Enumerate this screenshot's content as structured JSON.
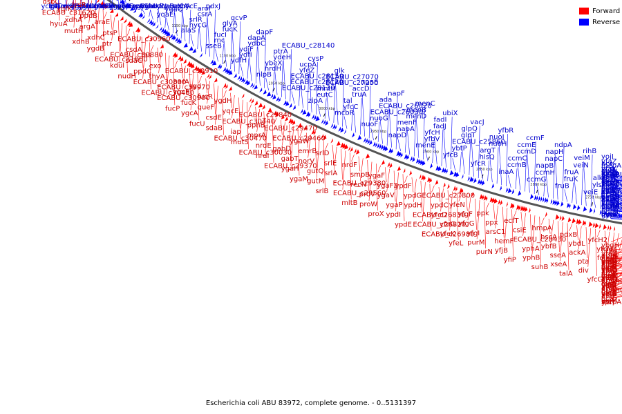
{
  "caption": "Escherichia coli ABU 83972, complete genome. - 0..5131397",
  "legend": [
    {
      "label": "Forward",
      "color": "#ff0000"
    },
    {
      "label": "Reverse",
      "color": "#0000ff"
    }
  ],
  "colors": {
    "forward": "#ff0000",
    "reverse": "#0000ff",
    "backbone": "#555555",
    "forward_label": "#cc0000",
    "reverse_label": "#0000cc"
  },
  "scale_labels": [
    "1250 kbp",
    "1200 kbp",
    "1150 kbp",
    "1100 kbp",
    "1050 kbp",
    "3000 kbp",
    "2950 kbp",
    "2900 kbp",
    "2850 kbp",
    "2800 kbp",
    "2750 kbp",
    "2700 kbp",
    "2650 kbp",
    "2600 kbp",
    "2550 kbp"
  ],
  "reverse_genes": [
    "yceV",
    "lplT",
    "lgt",
    "amiC",
    "aas",
    "recB",
    "recD",
    "recC",
    "ygdI",
    "gudX",
    "ygdL",
    "fucA",
    "fucO",
    "truC",
    "gudD",
    "relA",
    "eno",
    "gcvA",
    "ygcF",
    "pyrG",
    "ygcS",
    "mazG",
    "rumA",
    "ygcU",
    "rpoS",
    "cysH",
    "ygbI",
    "hvdN",
    "luxS",
    "yqaB",
    "yqaE",
    "ygaQ",
    "ygaX",
    "ygbA",
    "recA",
    "hycE",
    "alaS",
    "hycG",
    "srlR",
    "csrA",
    "aroF",
    "pdxJ",
    "sseB",
    "rnc",
    "fucI",
    "fucK",
    "glyA",
    "gcvP",
    "ydfH",
    "ydfI",
    "ydjF",
    "ydbC",
    "dapA",
    "dapF",
    "nlpB",
    "nrdH",
    "ybeX",
    "ydeH",
    "ptrA",
    "ECABU_c28140",
    "ECABU_c28130",
    "ECABU_c28120",
    "ECABU_c28150",
    "yfeZ",
    "ucpA",
    "cysP",
    "zipA",
    "eutC",
    "mntH",
    "ECABU_c27250",
    "ECABU_c27070",
    "glk",
    "mcbR",
    "yfcC",
    "tal",
    "truA",
    "accD",
    "nuoE",
    "nuoF",
    "nuoG",
    "ECABU_c26030",
    "ECABU_c26020",
    "ada",
    "napF",
    "napD",
    "napA",
    "menF",
    "menD",
    "menB",
    "menC",
    "menE",
    "yfbV",
    "yfcH",
    "fadJ",
    "fadI",
    "ubiX",
    "yfcB",
    "ybtP",
    "ECABU_c25860",
    "glpT",
    "glpQ",
    "vacJ",
    "yfcR",
    "hisQ",
    "argT",
    "nuoH",
    "nuoI",
    "yfbR",
    "inaA",
    "ccmB",
    "ccmC",
    "ccmD",
    "ccmE",
    "ccmF",
    "ccmG",
    "ccmH",
    "napB",
    "napC",
    "napH",
    "ndpA",
    "fruB",
    "fruK",
    "fruA",
    "veiN",
    "veiM",
    "rihB",
    "veiE",
    "ylsP",
    "alkB",
    "rsuA",
    "bcr",
    "yojI",
    "yejG",
    "yfcL",
    "yfaT",
    "yfaX",
    "yfaY",
    "yfaZ",
    "yfaW",
    "yfaP",
    "rcsC",
    "sixA",
    "yfcE",
    "mepA",
    "ECABU_c28590",
    "yfiD",
    "ung",
    "ECABU_c30520",
    "gcvR",
    "bcp",
    "nupC",
    "yphH",
    "ECABU_c27930",
    "eutQ",
    "eutT",
    "eutN",
    "eutM",
    "ECABU_c29850",
    "hypD",
    "hypC",
    "hycA",
    "hycD",
    "cysD",
    "cysN",
    "ygbM",
    "ygcW",
    "cysC",
    "ECABU_c30050",
    "hypF",
    "ECABU_c29860",
    "ECABU_c29550",
    "ECABU_c29870",
    "ygcX",
    "ygdE",
    "ftsB",
    "ygbE",
    "hycF",
    "hycI",
    "ECABU_c30140",
    "ECABU_c30150",
    "gcvQ"
  ],
  "forward_genes": [
    "yggD",
    "serA",
    "yqfE",
    "dsbC",
    "ECABU_c31620",
    "hyuA",
    "idi",
    "ssnA",
    "ygfK",
    "xdhA",
    "mutH",
    "xdhB",
    "lysR",
    "ppdB",
    "argA",
    "xdhC",
    "ygdB",
    "ECABU_c31000",
    "araE",
    "ptsP",
    "ptr",
    "ECABU_c30880",
    "kdul",
    "nudH",
    "ECABU_c30960",
    "csdA",
    "sdaC",
    "ppdC",
    "ECABU_c30890",
    "ECABU_c30480",
    "tas",
    "exo",
    "thyA",
    "ECABU_c30970",
    "ECABU_c30900",
    "fucP",
    "ECABU_c30910",
    "barA",
    "ygcE",
    "fucK",
    "ygcA",
    "fucU",
    "syd",
    "fucR",
    "queF",
    "csdE",
    "sdaB",
    "ECABU_c30470",
    "ygdH",
    "yqcE",
    "ECABU_c30440",
    "iap",
    "mutS",
    "ECABU_c30030",
    "ECABU_c29840",
    "pphB",
    "mprA",
    "nrdE",
    "nrdI",
    "ECABU_c29370",
    "ECABU_c29470",
    "ECABU_c29460",
    "gabD",
    "gabT",
    "ygaH",
    "ygaM",
    "ygaW",
    "emrB",
    "norV",
    "gutQ",
    "gutM",
    "srlB",
    "srlD",
    "srlE",
    "srlA",
    "ECABU_c29380",
    "ECABU_c29560",
    "mltB",
    "nrdF",
    "smpB",
    "recN",
    "proV",
    "proW",
    "proX",
    "ygaF",
    "ygaF2",
    "ygaV",
    "ygaP",
    "ypdI",
    "ypdE",
    "ypdF",
    "ypdG",
    "ypdH",
    "ECABU_c26830",
    "ECABU_c26820",
    "ECABU_c26980",
    "ECABU_c27800",
    "ypdC",
    "yfeD",
    "yfeG",
    "yfeK",
    "yfeL",
    "yfeN",
    "yfgF",
    "yfgG",
    "yfgI",
    "purM",
    "purN",
    "ppk",
    "ppx",
    "arsC1",
    "hemF",
    "yfjB",
    "yfiP",
    "ecfT",
    "csiE",
    "ECABU_c28430",
    "yphA",
    "yphB",
    "suhB",
    "hmpA",
    "hscA",
    "ybfB",
    "sseA",
    "xseA",
    "talA",
    "pdxB",
    "ybdL",
    "ackA",
    "pta",
    "div",
    "yfcG",
    "yfcH2",
    "yfcN",
    "folX",
    "yfbN",
    "yfbM",
    "yfbL",
    "ybgH",
    "arnA",
    "arnB",
    "arnC",
    "arnD",
    "arnE",
    "nrdA",
    "nrdB",
    "glpC",
    "glpA",
    "glpB",
    "yfaE",
    "yfaD",
    "yfaO",
    "yfaQ",
    "atoD",
    "atoA",
    "atoE",
    "atoB",
    "atoS",
    "atoC",
    "ECABU_c25630",
    "ECABU_c25510",
    "eco",
    "apbE",
    "yojN",
    "rcsB",
    "rcsD",
    "narP",
    "yejM",
    "yejL",
    "yejE",
    "yejF",
    "yejB",
    "yejA",
    "spr",
    "yeiL",
    "yeiO",
    "yeiQ",
    "yeiR",
    "yeiU",
    "yeiT",
    "yfbH",
    "yfbG",
    "yfbE",
    "yfbF",
    "ubiG",
    "mepA2",
    "glpB2"
  ]
}
